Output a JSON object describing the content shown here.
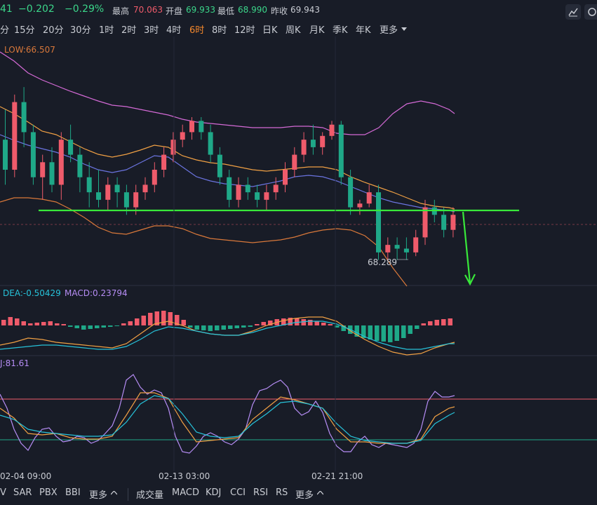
{
  "quote": {
    "price_fragment": "41",
    "change": "−0.202",
    "change_pct": "−0.29%",
    "high_label": "最高",
    "high_value": "70.063",
    "open_label": "开盘",
    "open_value": "69.933",
    "low_label": "最低",
    "low_value": "68.990",
    "prev_close_label": "昨收",
    "prev_close_value": "69.943"
  },
  "periods": [
    "分",
    "15分",
    "20分",
    "30分",
    "1时",
    "2时",
    "3时",
    "4时",
    "6时",
    "8时",
    "12时",
    "日K",
    "周K",
    "月K",
    "季K",
    "年K",
    "更多"
  ],
  "active_period": "6时",
  "main_chart": {
    "low_label": "LOW:66.507",
    "min_price_label": "68.289",
    "colors": {
      "up": "#ef5b6b",
      "down": "#1fa888",
      "upper_band": "#d46ad6",
      "lower_band": "#d9783a",
      "ma_mid": "#6b74e0",
      "ma_slow": "#f0a044",
      "support_line": "#38e83a"
    }
  },
  "macd_panel": {
    "dea_label": "DEA:-0.50429",
    "macd_label": "MACD:0.23794",
    "colors": {
      "dea": "#27c2d9",
      "dif": "#f0a044",
      "macd_label": "#b68df5"
    }
  },
  "kdj_panel": {
    "label": "J:81.61",
    "colors": {
      "j": "#b68df5",
      "k": "#f0a044",
      "d": "#27c2d9",
      "upper": "#ef5b6b",
      "lower": "#1fa888"
    }
  },
  "time_axis": [
    "02-04 09:00",
    "02-13 03:00",
    "02-21 21:00"
  ],
  "bottom_tabs": {
    "left": [
      "V",
      "SAR",
      "PBX",
      "BBI",
      "更多"
    ],
    "right": [
      "成交量",
      "MACD",
      "KDJ",
      "CCI",
      "RSI",
      "RS",
      "更多"
    ]
  },
  "chart_data": {
    "type": "candlestick",
    "candles": [
      [
        69.9,
        70.3,
        69.3,
        69.5
      ],
      [
        69.5,
        70.5,
        69.4,
        70.4
      ],
      [
        70.4,
        70.6,
        69.8,
        70.0
      ],
      [
        70.0,
        70.1,
        69.3,
        69.4
      ],
      [
        69.4,
        69.7,
        69.1,
        69.6
      ],
      [
        69.6,
        69.8,
        69.2,
        69.3
      ],
      [
        69.3,
        70.0,
        69.1,
        69.9
      ],
      [
        69.9,
        70.1,
        69.6,
        69.7
      ],
      [
        69.7,
        69.8,
        69.2,
        69.4
      ],
      [
        69.4,
        69.6,
        69.0,
        69.2
      ],
      [
        69.2,
        69.5,
        69.0,
        69.1
      ],
      [
        69.1,
        69.4,
        68.95,
        69.3
      ],
      [
        69.3,
        69.4,
        69.0,
        69.2
      ],
      [
        69.2,
        69.3,
        68.9,
        69.0
      ],
      [
        69.0,
        69.3,
        68.9,
        69.2
      ],
      [
        69.2,
        69.4,
        69.1,
        69.3
      ],
      [
        69.3,
        69.6,
        69.2,
        69.5
      ],
      [
        69.5,
        69.8,
        69.4,
        69.7
      ],
      [
        69.7,
        70.0,
        69.6,
        69.9
      ],
      [
        69.9,
        70.1,
        69.8,
        70.0
      ],
      [
        70.0,
        70.2,
        69.9,
        70.15
      ],
      [
        70.15,
        70.2,
        69.9,
        70.0
      ],
      [
        70.0,
        70.1,
        69.6,
        69.7
      ],
      [
        69.7,
        69.8,
        69.3,
        69.4
      ],
      [
        69.4,
        69.5,
        69.0,
        69.1
      ],
      [
        69.1,
        69.4,
        69.0,
        69.3
      ],
      [
        69.3,
        69.4,
        69.1,
        69.2
      ],
      [
        69.2,
        69.3,
        69.0,
        69.1
      ],
      [
        69.1,
        69.3,
        68.95,
        69.2
      ],
      [
        69.2,
        69.4,
        69.1,
        69.3
      ],
      [
        69.3,
        69.6,
        69.2,
        69.5
      ],
      [
        69.5,
        69.8,
        69.4,
        69.7
      ],
      [
        69.7,
        70.0,
        69.6,
        69.9
      ],
      [
        69.9,
        70.1,
        69.7,
        69.8
      ],
      [
        69.8,
        70.0,
        69.7,
        69.95
      ],
      [
        69.95,
        70.15,
        69.9,
        70.1
      ],
      [
        70.1,
        70.15,
        69.3,
        69.4
      ],
      [
        69.4,
        69.5,
        68.9,
        69.0
      ],
      [
        69.0,
        69.1,
        68.9,
        69.05
      ],
      [
        69.05,
        69.3,
        69.0,
        69.2
      ],
      [
        69.2,
        69.3,
        68.3,
        68.4
      ],
      [
        68.4,
        68.6,
        68.3,
        68.5
      ],
      [
        68.5,
        68.6,
        68.3,
        68.45
      ],
      [
        68.45,
        68.6,
        68.3,
        68.4
      ],
      [
        68.4,
        68.7,
        68.35,
        68.6
      ],
      [
        68.6,
        69.1,
        68.5,
        69.0
      ],
      [
        69.0,
        69.1,
        68.8,
        68.9
      ],
      [
        68.9,
        69.0,
        68.6,
        68.7
      ],
      [
        68.7,
        69.0,
        68.6,
        68.9
      ]
    ]
  }
}
